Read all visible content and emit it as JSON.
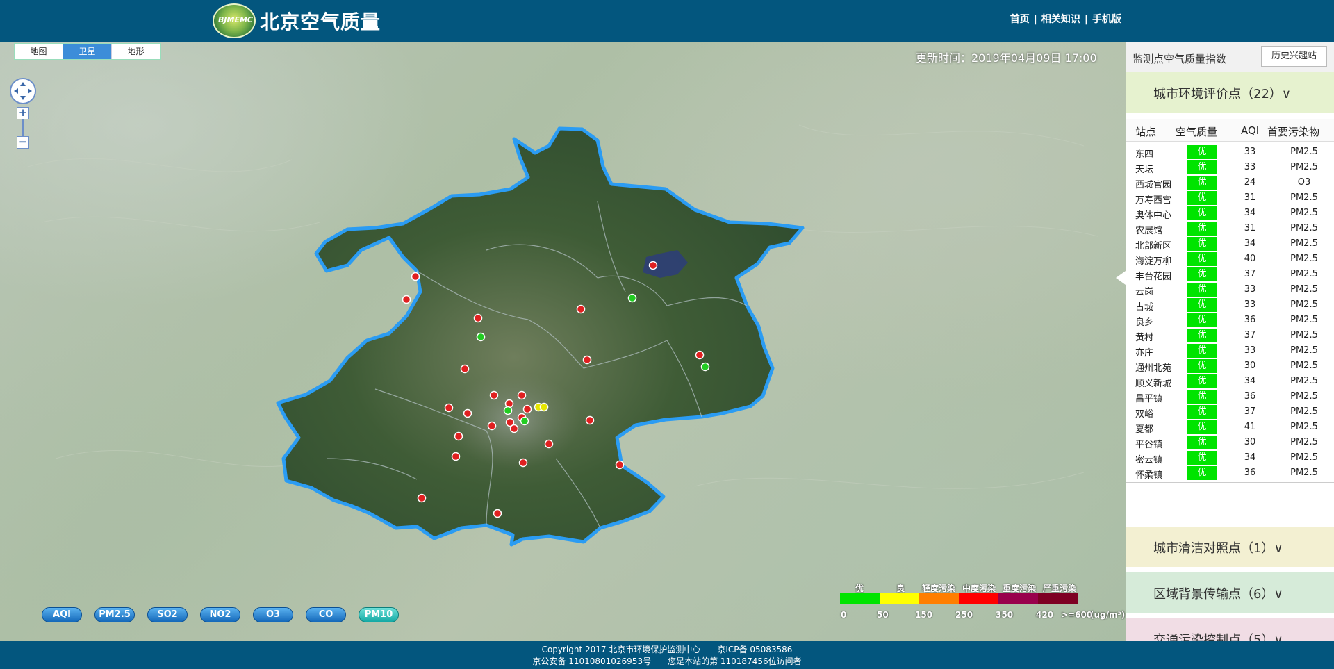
{
  "header": {
    "logo_text": "BJMEMC",
    "title": "北京空气质量",
    "nav": [
      "首页",
      "相关知识",
      "手机版"
    ]
  },
  "map": {
    "map_types": [
      "地图",
      "卫星",
      "地形"
    ],
    "active_map_type": "卫星",
    "update_time": "更新时间：2019年04月09日 17:00",
    "pollutant_buttons": [
      "AQI",
      "PM2.5",
      "SO2",
      "NO2",
      "O3",
      "CO",
      "PM10"
    ],
    "active_pollutant": "PM10"
  },
  "legend": {
    "labels": [
      "优",
      "良",
      "轻度污染",
      "中度污染",
      "重度污染",
      "严重污染"
    ],
    "colors": [
      "#00e400",
      "#ffff00",
      "#ff7e00",
      "#ff0000",
      "#99004c",
      "#7e0023"
    ],
    "ticks": [
      "0",
      "50",
      "150",
      "250",
      "350",
      "420",
      ">=600",
      "(ug/m³)"
    ]
  },
  "panel": {
    "title": "监测点空气质量指数",
    "history_button": "历史兴趣站",
    "groups": [
      {
        "label": "城市环境评价点（22）∨"
      },
      {
        "label": "城市清洁对照点（1）∨"
      },
      {
        "label": "区域背景传输点（6）∨"
      },
      {
        "label": "交通污染控制点（5）∨"
      }
    ],
    "columns": [
      "站点",
      "空气质量",
      "AQI",
      "首要污染物"
    ],
    "stations": [
      {
        "name": "东四",
        "quality": "优",
        "aqi": "33",
        "primary": "PM2.5"
      },
      {
        "name": "天坛",
        "quality": "优",
        "aqi": "33",
        "primary": "PM2.5"
      },
      {
        "name": "西城官园",
        "quality": "优",
        "aqi": "24",
        "primary": "O3"
      },
      {
        "name": "万寿西宫",
        "quality": "优",
        "aqi": "31",
        "primary": "PM2.5"
      },
      {
        "name": "奥体中心",
        "quality": "优",
        "aqi": "34",
        "primary": "PM2.5"
      },
      {
        "name": "农展馆",
        "quality": "优",
        "aqi": "31",
        "primary": "PM2.5"
      },
      {
        "name": "北部新区",
        "quality": "优",
        "aqi": "34",
        "primary": "PM2.5"
      },
      {
        "name": "海淀万柳",
        "quality": "优",
        "aqi": "40",
        "primary": "PM2.5"
      },
      {
        "name": "丰台花园",
        "quality": "优",
        "aqi": "37",
        "primary": "PM2.5"
      },
      {
        "name": "云岗",
        "quality": "优",
        "aqi": "33",
        "primary": "PM2.5"
      },
      {
        "name": "古城",
        "quality": "优",
        "aqi": "33",
        "primary": "PM2.5"
      },
      {
        "name": "良乡",
        "quality": "优",
        "aqi": "36",
        "primary": "PM2.5"
      },
      {
        "name": "黄村",
        "quality": "优",
        "aqi": "37",
        "primary": "PM2.5"
      },
      {
        "name": "亦庄",
        "quality": "优",
        "aqi": "33",
        "primary": "PM2.5"
      },
      {
        "name": "通州北苑",
        "quality": "优",
        "aqi": "30",
        "primary": "PM2.5"
      },
      {
        "name": "顺义新城",
        "quality": "优",
        "aqi": "34",
        "primary": "PM2.5"
      },
      {
        "name": "昌平镇",
        "quality": "优",
        "aqi": "36",
        "primary": "PM2.5"
      },
      {
        "name": "双峪",
        "quality": "优",
        "aqi": "37",
        "primary": "PM2.5"
      },
      {
        "name": "夏都",
        "quality": "优",
        "aqi": "41",
        "primary": "PM2.5"
      },
      {
        "name": "平谷镇",
        "quality": "优",
        "aqi": "30",
        "primary": "PM2.5"
      },
      {
        "name": "密云镇",
        "quality": "优",
        "aqi": "34",
        "primary": "PM2.5"
      },
      {
        "name": "怀柔镇",
        "quality": "优",
        "aqi": "36",
        "primary": "PM2.5"
      }
    ]
  },
  "footer": {
    "line1": "Copyright 2017 北京市环境保护监测中心　　京ICP备 05083586",
    "line2": "京公安备 110108010269­53号　　您是本站的第 110187456位访问者"
  }
}
